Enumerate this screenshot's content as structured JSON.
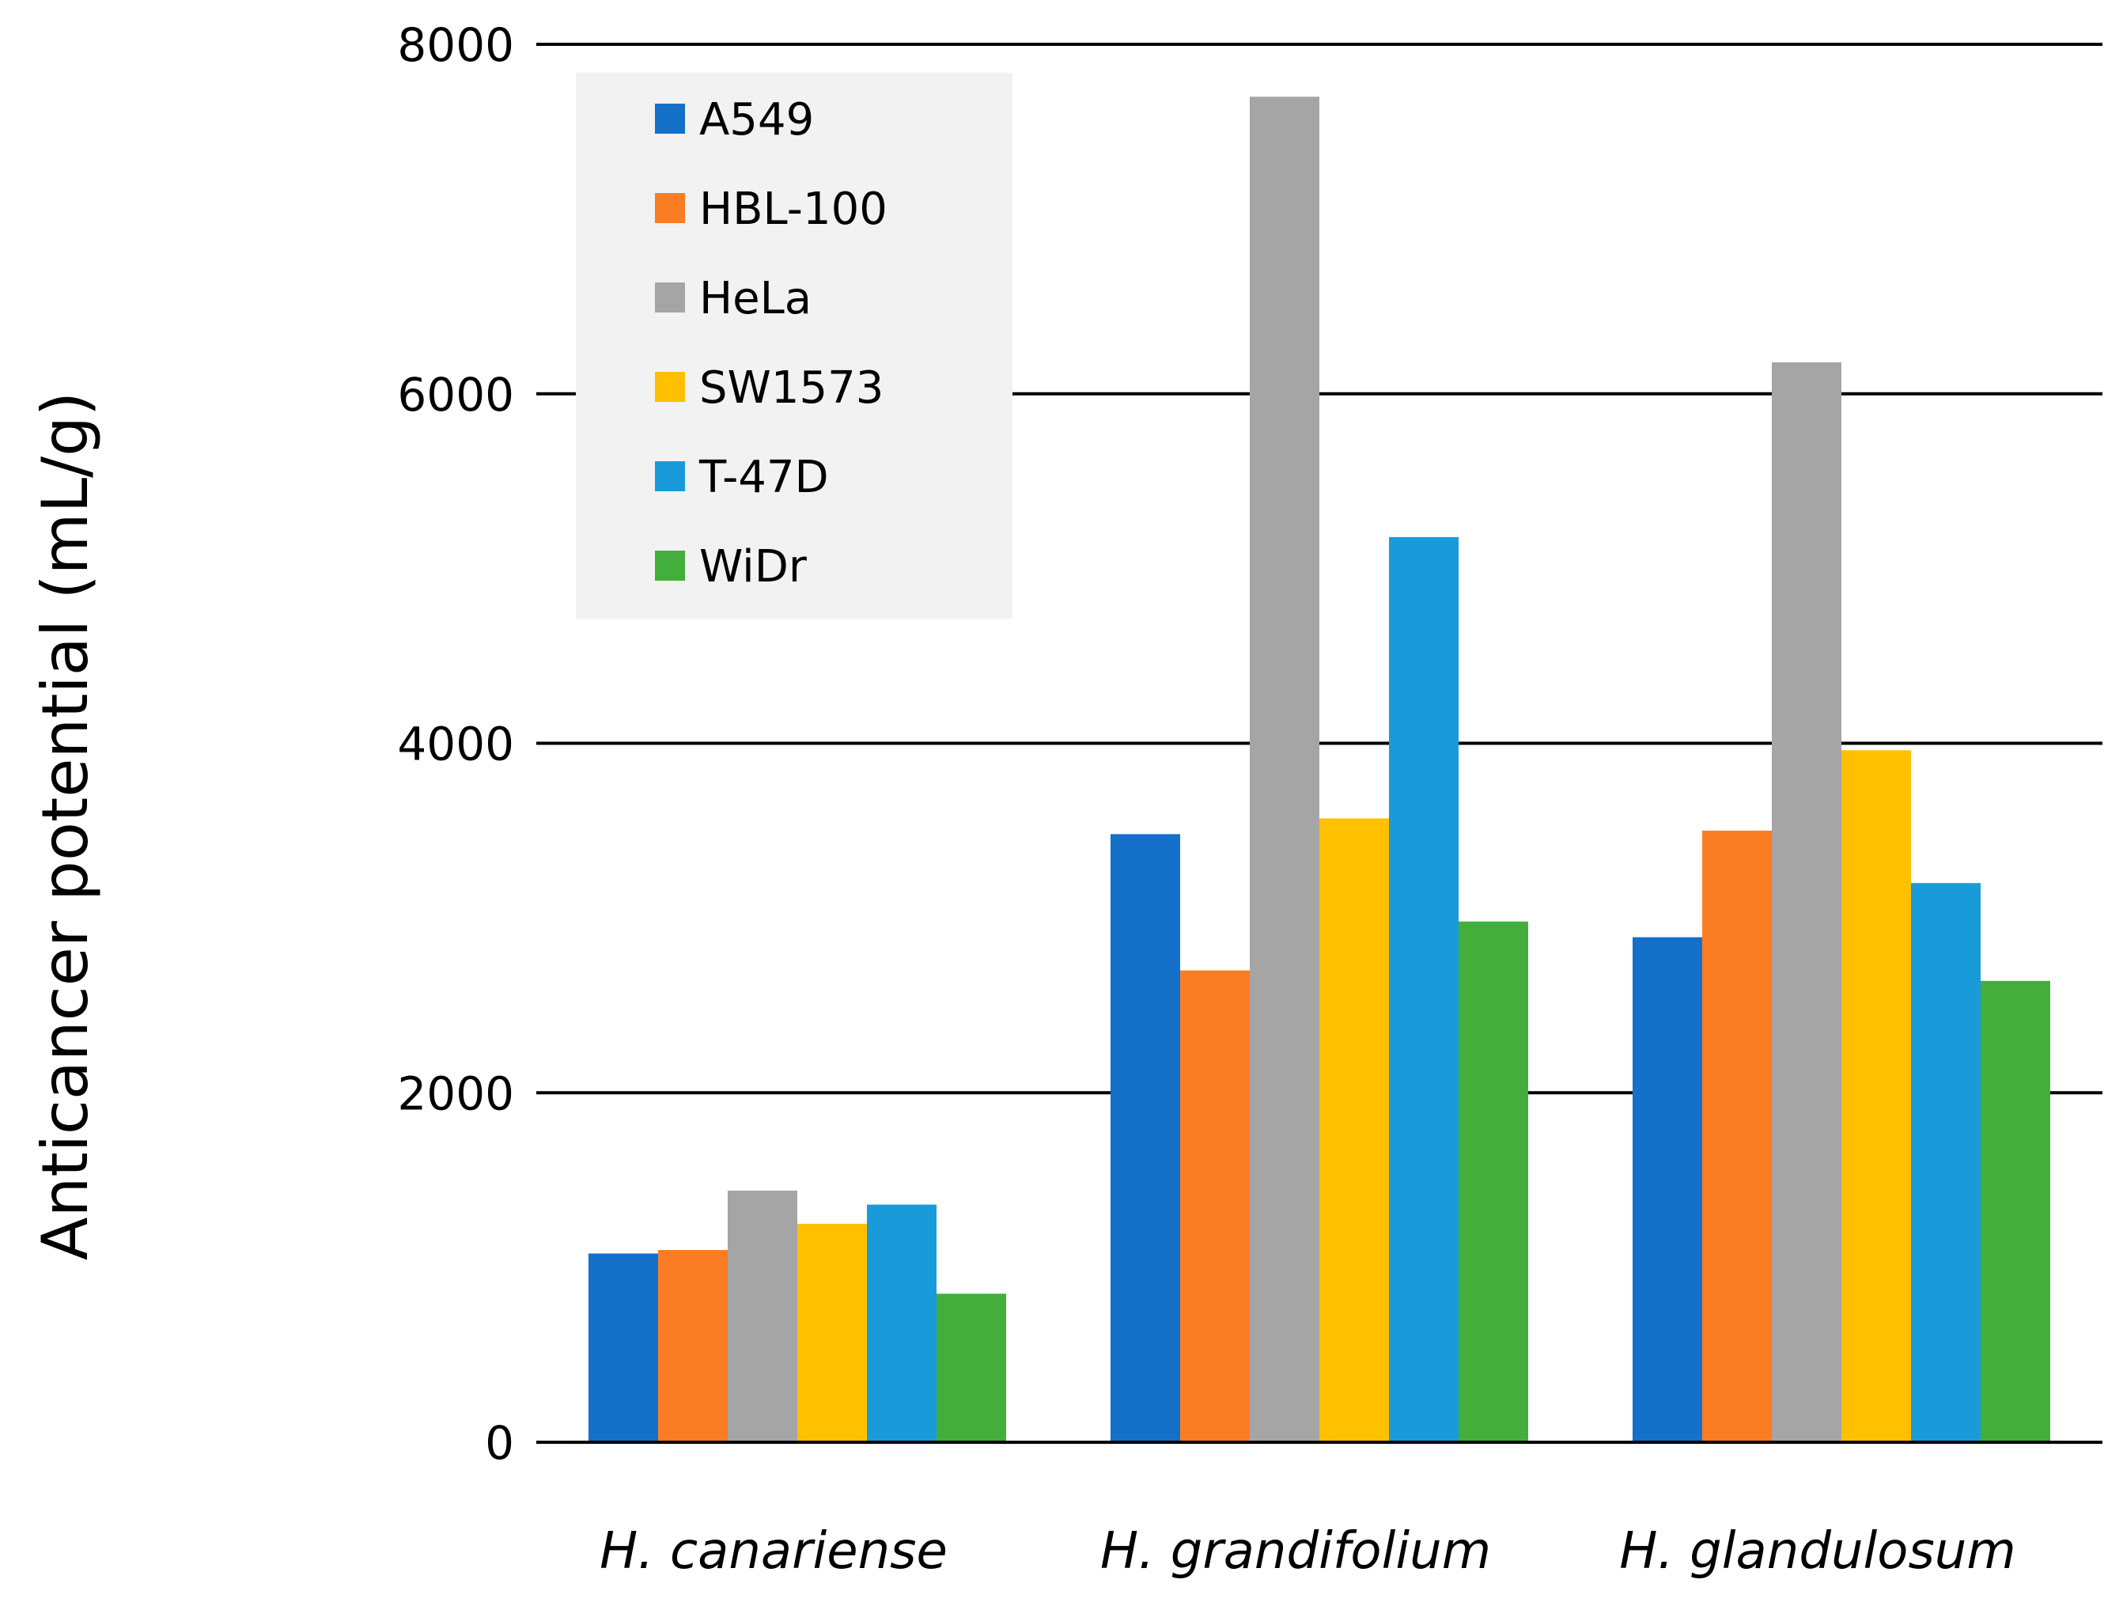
{
  "chart_data": {
    "type": "bar",
    "title": "",
    "xlabel": "",
    "ylabel": "Anticancer potential (mL/g)",
    "ylim": [
      0,
      8000
    ],
    "yticks": [
      0,
      2000,
      4000,
      6000,
      8000
    ],
    "grid": true,
    "legend_position": "top-left",
    "categories": [
      "H. canariense",
      "H. grandifolium",
      "H. glandulosum"
    ],
    "series": [
      {
        "name": "A549",
        "color": "#1570c9",
        "values": [
          1080,
          3480,
          2890
        ]
      },
      {
        "name": "HBL-100",
        "color": "#fa7d23",
        "values": [
          1100,
          2700,
          3500
        ]
      },
      {
        "name": "HeLa",
        "color": "#a5a5a5",
        "values": [
          1440,
          7700,
          6180
        ]
      },
      {
        "name": "SW1573",
        "color": "#ffc000",
        "values": [
          1250,
          3570,
          3960
        ]
      },
      {
        "name": "T-47D",
        "color": "#199bd9",
        "values": [
          1360,
          5180,
          3200
        ]
      },
      {
        "name": "WiDr",
        "color": "#44ae3c",
        "values": [
          850,
          2980,
          2640
        ]
      }
    ]
  }
}
